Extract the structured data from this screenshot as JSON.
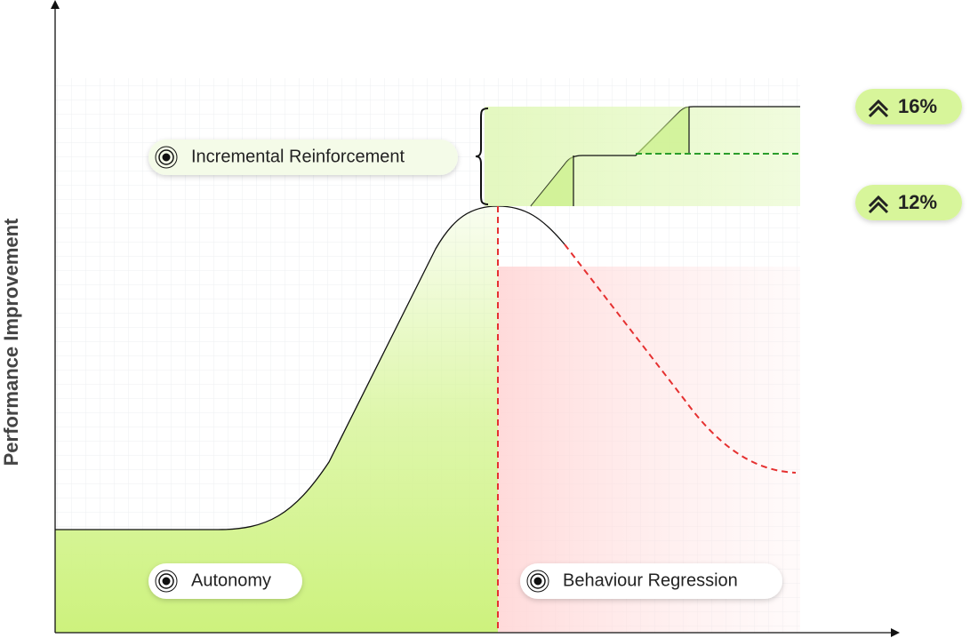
{
  "axis": {
    "y_label": "Performance Improvement"
  },
  "labels": [
    "Incremental Reinforcement",
    "Autonomy",
    "Behaviour Regression"
  ],
  "badges": [
    "16%",
    "12%"
  ]
}
